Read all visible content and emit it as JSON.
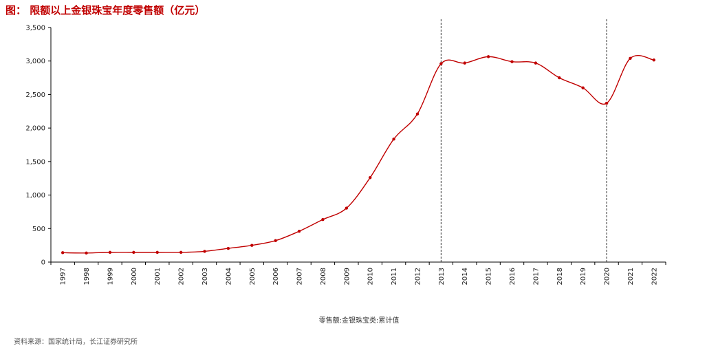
{
  "header": {
    "title": "图： 限额以上金银珠宝年度零售额（亿元）"
  },
  "footer": {
    "source": "资料来源：国家统计局，长江证券研究所"
  },
  "chart_data": {
    "type": "line",
    "title": "",
    "xlabel": "",
    "ylabel": "",
    "categories": [
      "1997",
      "1998",
      "1999",
      "2000",
      "2001",
      "2002",
      "2003",
      "2004",
      "2005",
      "2006",
      "2007",
      "2008",
      "2009",
      "2010",
      "2011",
      "2012",
      "2013",
      "2014",
      "2015",
      "2016",
      "2017",
      "2018",
      "2019",
      "2020",
      "2021",
      "2022"
    ],
    "series": [
      {
        "name": "零售额:金银珠宝类:累计值",
        "values": [
          140,
          135,
          145,
          145,
          145,
          145,
          160,
          205,
          250,
          320,
          460,
          635,
          805,
          1260,
          1835,
          2210,
          2960,
          2970,
          3065,
          2990,
          2970,
          2750,
          2600,
          2370,
          3040,
          3015
        ],
        "color": "#c00000"
      }
    ],
    "ylim": [
      0,
      3500
    ],
    "yticks": [
      0,
      500,
      1000,
      1500,
      2000,
      2500,
      3000,
      3500
    ],
    "ytick_labels": [
      "0",
      "500",
      "1,000",
      "1,500",
      "2,000",
      "2,500",
      "3,000",
      "3,500"
    ],
    "vertical_markers": [
      "2013",
      "2020"
    ],
    "grid": false,
    "legend_position": "bottom"
  }
}
